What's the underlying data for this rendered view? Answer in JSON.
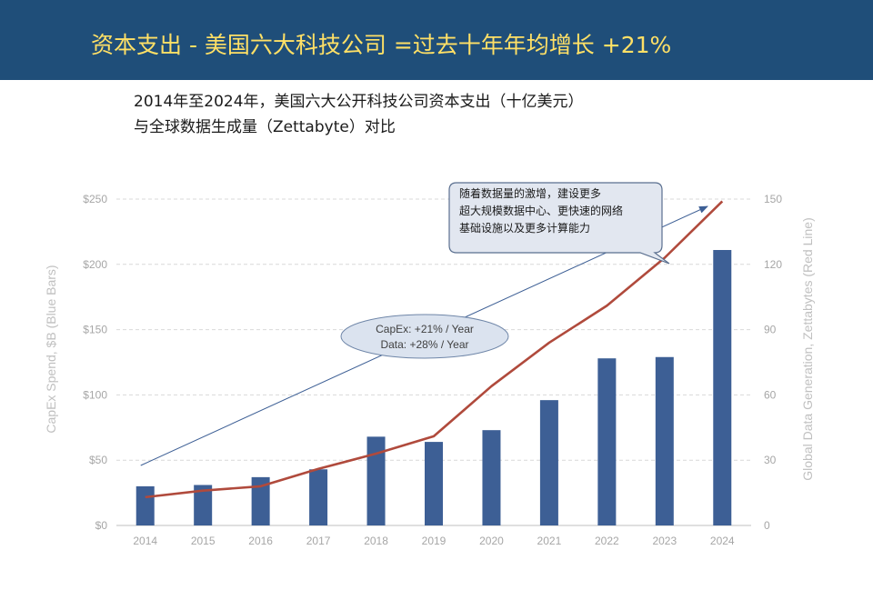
{
  "header": {
    "title": "资本支出 - 美国六大科技公司 =过去十年年均增长 +21%"
  },
  "subtitle": {
    "line1": "2014年至2024年，美国六大公开科技公司资本支出（十亿美元）",
    "line2": "与全球数据生成量（Zettabyte）对比"
  },
  "colors": {
    "header_bg": "#1f4e79",
    "header_text": "#ffe066",
    "bars": "#3d5f95",
    "line": "#b04a3c",
    "arrow": "#3d5f95"
  },
  "chart_data": {
    "type": "bar",
    "categories": [
      "2014",
      "2015",
      "2016",
      "2017",
      "2018",
      "2019",
      "2020",
      "2021",
      "2022",
      "2023",
      "2024"
    ],
    "series": [
      {
        "axis": "left",
        "type": "bar",
        "values": [
          30,
          31,
          37,
          43,
          68,
          64,
          73,
          96,
          128,
          129,
          211
        ]
      },
      {
        "axis": "right",
        "type": "line",
        "values": [
          13,
          16,
          18,
          26,
          33,
          41,
          64,
          84,
          101,
          123,
          149
        ]
      }
    ],
    "y_left": {
      "label": "CapEx Spend, $B (Blue Bars)",
      "ylim": [
        0,
        250
      ],
      "ticks": [
        "$0",
        "$50",
        "$100",
        "$150",
        "$200",
        "$250"
      ]
    },
    "y_right": {
      "label": "Global Data Generation, Zettabytes (Red Line)",
      "ylim": [
        0,
        150
      ],
      "ticks": [
        "0",
        "30",
        "60",
        "90",
        "120",
        "150"
      ]
    },
    "grid": true,
    "annotations": {
      "ellipse_line1": "CapEx: +21% / Year",
      "ellipse_line2": "Data: +28% / Year",
      "callout_line1": "随着数据量的激增，建设更多",
      "callout_line2": "超大规模数据中心、更快速的网络",
      "callout_line3": "基础设施以及更多计算能力"
    }
  }
}
